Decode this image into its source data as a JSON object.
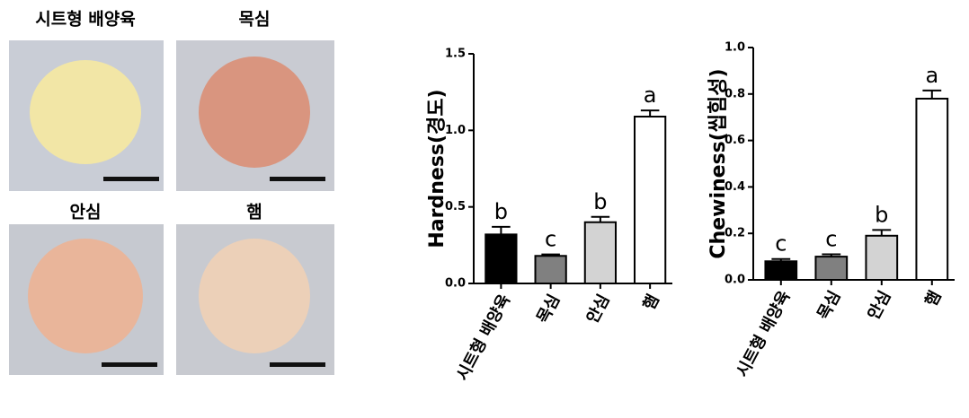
{
  "photos": {
    "labels": [
      "시트형 배양육",
      "목심",
      "안심",
      "햄"
    ]
  },
  "chart_data": [
    {
      "type": "bar",
      "ylabel": "Hardness(경도)",
      "categories": [
        "시트형 배양육",
        "목심",
        "안심",
        "햄"
      ],
      "series": [
        {
          "values": [
            0.32,
            0.18,
            0.4,
            1.09
          ],
          "errors": [
            0.05,
            0.01,
            0.035,
            0.04
          ],
          "colors": [
            "#000000",
            "#808080",
            "#d3d3d3",
            "#ffffff"
          ]
        }
      ],
      "annotations": [
        "b",
        "c",
        "b",
        "a"
      ],
      "ylim": [
        0,
        1.5
      ],
      "yticks": [
        {
          "value": 0,
          "label": "0.0"
        },
        0.5,
        {
          "value": 1,
          "label": "1.0"
        },
        1.5
      ]
    },
    {
      "type": "bar",
      "ylabel": "Chewiness(씹힘성)",
      "categories": [
        "시트형 배양육",
        "목심",
        "안심",
        "햄"
      ],
      "series": [
        {
          "values": [
            0.08,
            0.1,
            0.19,
            0.78
          ],
          "errors": [
            0.01,
            0.01,
            0.025,
            0.035
          ],
          "colors": [
            "#000000",
            "#808080",
            "#d3d3d3",
            "#ffffff"
          ]
        }
      ],
      "annotations": [
        "c",
        "c",
        "b",
        "a"
      ],
      "ylim": [
        0,
        1
      ],
      "yticks": [
        {
          "value": 0,
          "label": "0.0"
        },
        0.2,
        0.4,
        0.6,
        0.8,
        {
          "value": 1,
          "label": "1.0"
        }
      ]
    }
  ]
}
